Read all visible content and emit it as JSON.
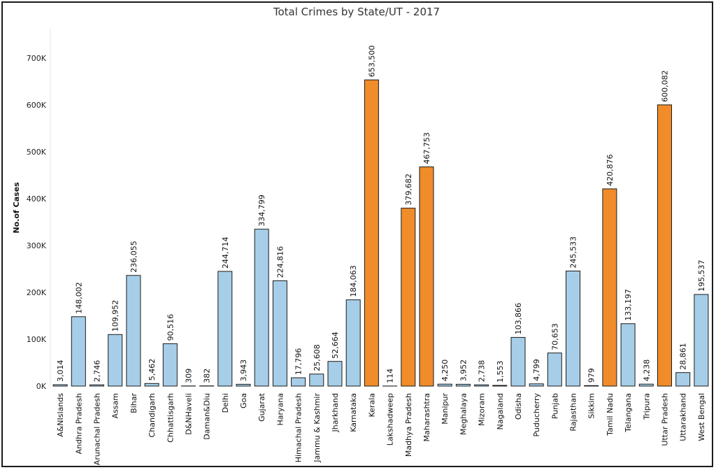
{
  "chart_data": {
    "type": "bar",
    "title": "Total Crimes by State/UT - 2017",
    "xlabel": "",
    "ylabel": "No.of Cases",
    "ylim": [
      0,
      760000
    ],
    "yticks": [
      0,
      100000,
      200000,
      300000,
      400000,
      500000,
      600000,
      700000
    ],
    "ytick_labels": [
      "0K",
      "100K",
      "200K",
      "300K",
      "400K",
      "500K",
      "600K",
      "700K"
    ],
    "grid": false,
    "colors": {
      "normal": "#a6cee8",
      "highlight": "#f08c2a",
      "outline": "#1a1a1a"
    },
    "categories": [
      "A&NIslands",
      "Andhra Pradesh",
      "Arunachal Pradesh",
      "Assam",
      "Bihar",
      "Chandigarh",
      "Chhattisgarh",
      "D&NHaveli",
      "Daman&Diu",
      "Delhi",
      "Goa",
      "Gujarat",
      "Haryana",
      "Himachal Pradesh",
      "Jammu & Kashmir",
      "Jharkhand",
      "Karnataka",
      "Kerala",
      "Lakshadweep",
      "Madhya Pradesh",
      "Maharashtra",
      "Manipur",
      "Meghalaya",
      "Mizoram",
      "Nagaland",
      "Odisha",
      "Puducherry",
      "Punjab",
      "Rajasthan",
      "Sikkim",
      "Tamil Nadu",
      "Telangana",
      "Tripura",
      "Uttar Pradesh",
      "Uttarakhand",
      "West Bengal"
    ],
    "values": [
      3014,
      148002,
      2746,
      109952,
      236055,
      5462,
      90516,
      309,
      382,
      244714,
      3943,
      334799,
      224816,
      17796,
      25608,
      52664,
      184063,
      653500,
      114,
      379682,
      467753,
      4250,
      3952,
      2738,
      1553,
      103866,
      4799,
      70653,
      245533,
      979,
      420876,
      133197,
      4238,
      600082,
      28861,
      195537
    ],
    "value_labels": [
      "3,014",
      "148,002",
      "2,746",
      "109,952",
      "236,055",
      "5,462",
      "90,516",
      "309",
      "382",
      "244,714",
      "3,943",
      "334,799",
      "224,816",
      "17,796",
      "25,608",
      "52,664",
      "184,063",
      "653,500",
      "114",
      "379,682",
      "467,753",
      "4,250",
      "3,952",
      "2,738",
      "1,553",
      "103,866",
      "4,799",
      "70,653",
      "245,533",
      "979",
      "420,876",
      "133,197",
      "4,238",
      "600,082",
      "28,861",
      "195,537"
    ],
    "highlighted": [
      "Kerala",
      "Madhya Pradesh",
      "Maharashtra",
      "Tamil Nadu",
      "Uttar Pradesh"
    ]
  }
}
